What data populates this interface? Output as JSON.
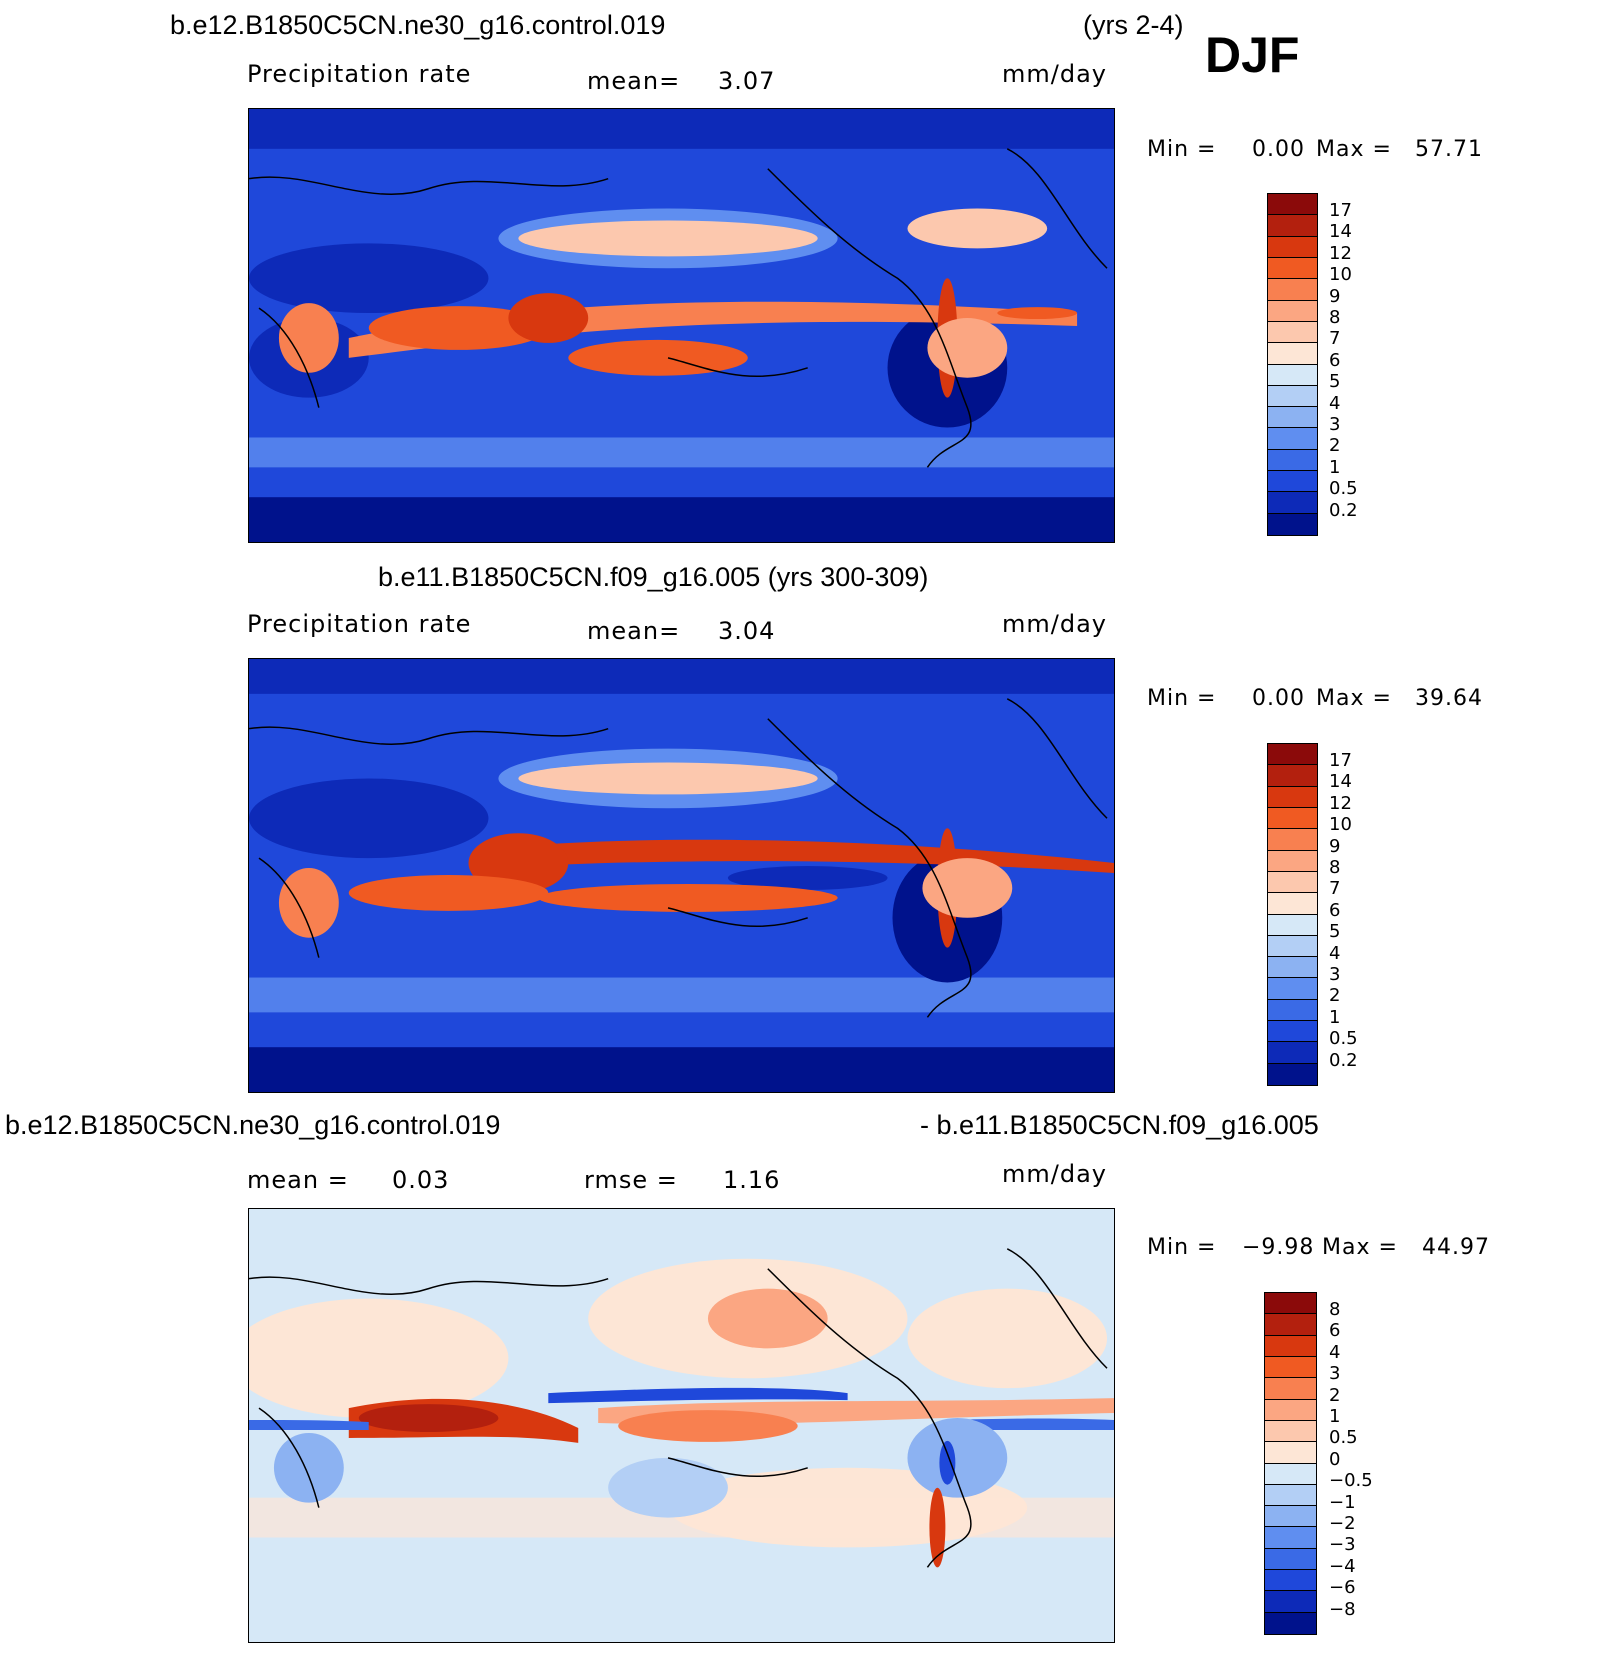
{
  "top": {
    "title": "b.e12.B1850C5CN.ne30_g16.control.019",
    "years": "(yrs 2-4)",
    "season": "DJF",
    "variable": "Precipitation rate",
    "mean_label": "mean=",
    "mean_value": "3.07",
    "units": "mm/day",
    "min_label": "Min =",
    "min_value": "0.00",
    "max_label": "Max =",
    "max_value": "57.71"
  },
  "middle": {
    "title": "b.e11.B1850C5CN.f09_g16.005 (yrs 300-309)",
    "variable": "Precipitation rate",
    "mean_label": "mean=",
    "mean_value": "3.04",
    "units": "mm/day",
    "min_label": "Min =",
    "min_value": "0.00",
    "max_label": "Max =",
    "max_value": "39.64"
  },
  "bottom": {
    "title_left": "b.e12.B1850C5CN.ne30_g16.control.019",
    "title_right": "- b.e11.B1850C5CN.f09_g16.005",
    "mean_label": "mean =",
    "mean_value": "0.03",
    "rmse_label": "rmse =",
    "rmse_value": "1.16",
    "units": "mm/day",
    "min_label": "Min =",
    "min_value": "−9.98",
    "max_label": "Max =",
    "max_value": "44.97"
  },
  "precip_colorbar": {
    "ticks": [
      "17",
      "14",
      "12",
      "10",
      "9",
      "8",
      "7",
      "6",
      "5",
      "4",
      "3",
      "2",
      "1",
      "0.5",
      "0.2"
    ],
    "colors": [
      "#8b0a0a",
      "#b3200e",
      "#d8380f",
      "#f05a22",
      "#f88050",
      "#fba682",
      "#fcc8ae",
      "#fde6d6",
      "#d6e8f7",
      "#b3cff5",
      "#8cb2f2",
      "#5f8ef0",
      "#3a6ae6",
      "#1f48da",
      "#0d2ab8",
      "#00128c"
    ]
  },
  "diff_colorbar": {
    "ticks": [
      "8",
      "6",
      "4",
      "3",
      "2",
      "1",
      "0.5",
      "0",
      "−0.5",
      "−1",
      "−2",
      "−3",
      "−4",
      "−6",
      "−8"
    ],
    "colors": [
      "#8b0a0a",
      "#b3200e",
      "#d8380f",
      "#f05a22",
      "#f88050",
      "#fba682",
      "#fcc8ae",
      "#fde6d6",
      "#d6e8f7",
      "#b3cff5",
      "#8cb2f2",
      "#5f8ef0",
      "#3a6ae6",
      "#1f48da",
      "#0d2ab8",
      "#00128c"
    ]
  },
  "palette": {
    "deep_blue": "#00128c",
    "mid_blue": "#1f48da",
    "light_blue": "#8cb2f2",
    "pale_blue": "#d6e8f7",
    "pale_red": "#fde6d6",
    "mid_red": "#f05a22",
    "deep_red": "#8b0a0a"
  }
}
